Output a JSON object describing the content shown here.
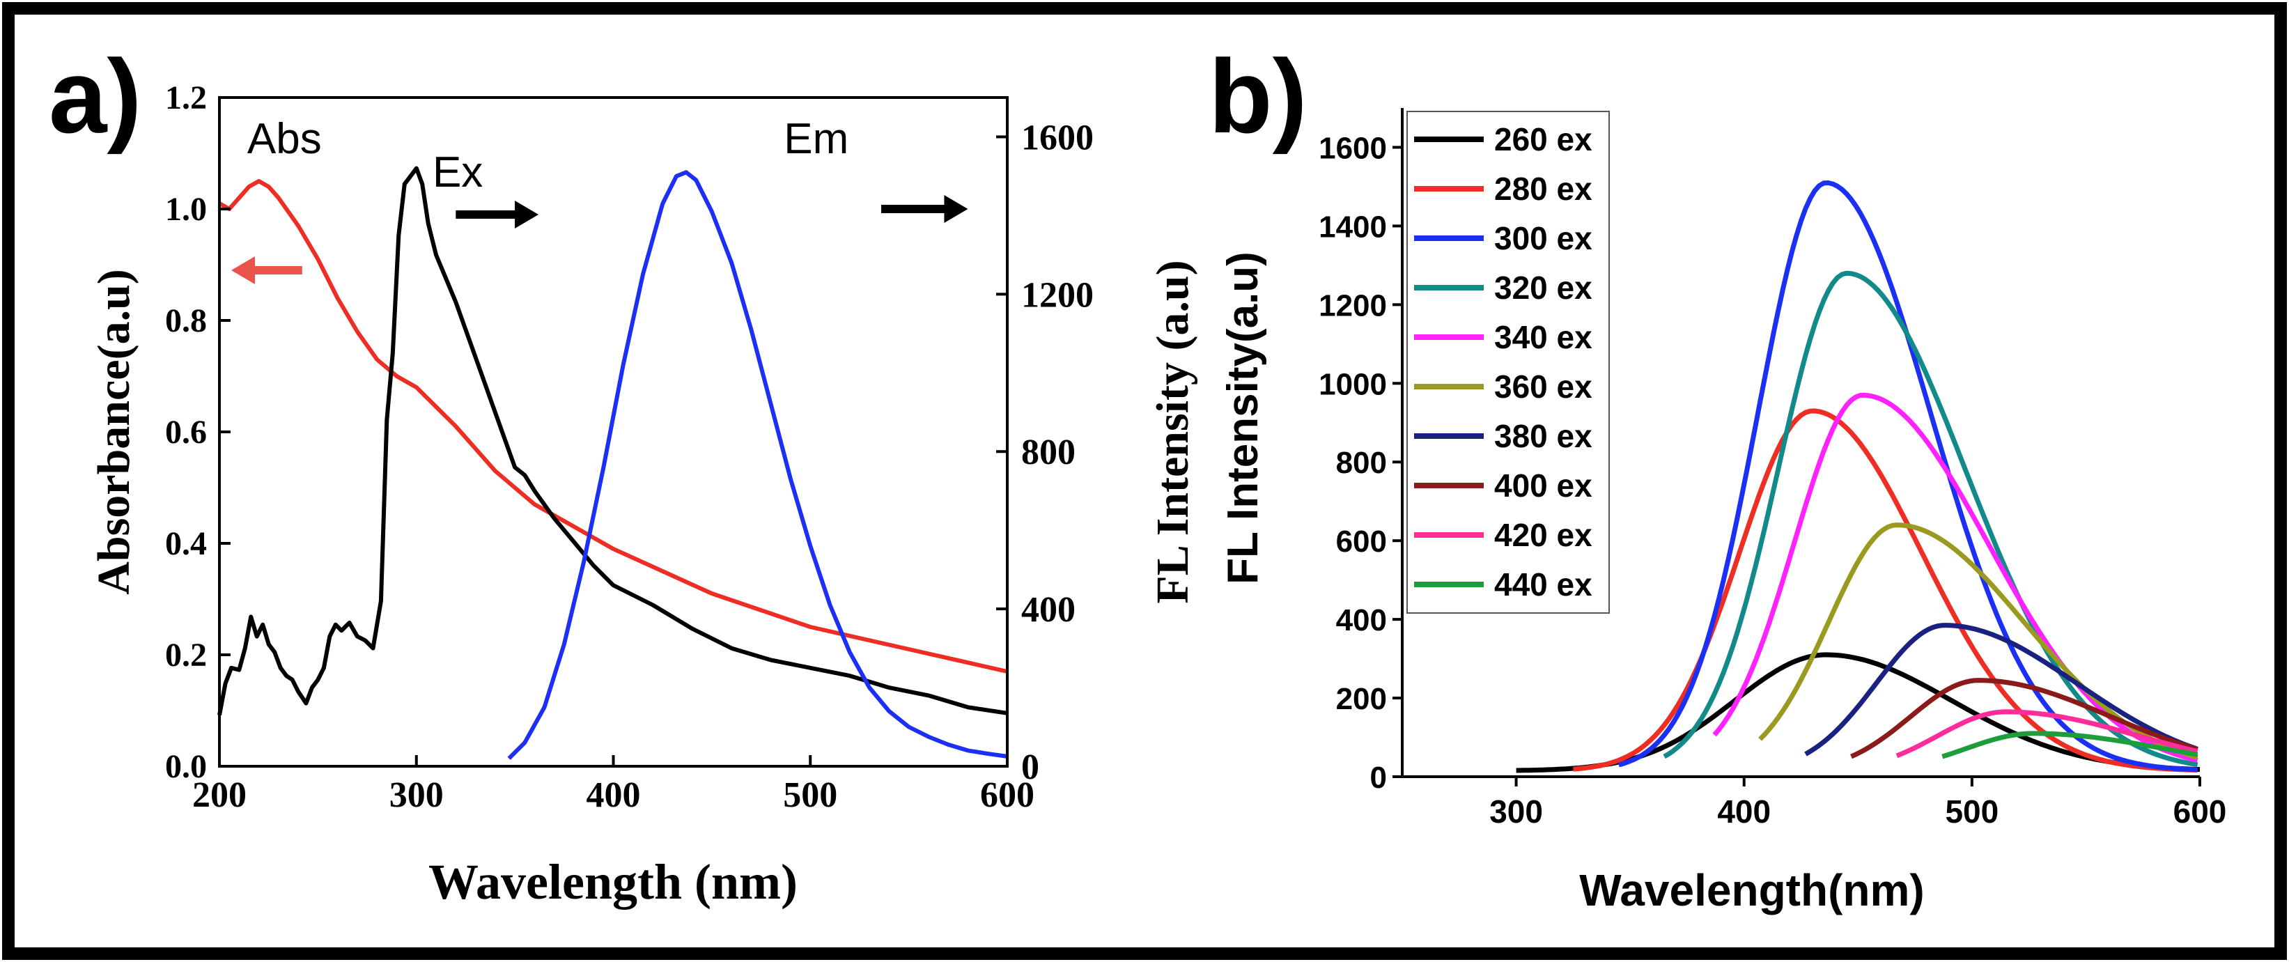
{
  "figure": {
    "colors": {
      "frame": "#000000",
      "background": "#ffffff"
    }
  },
  "chart_data": [
    {
      "type": "line",
      "panel_label": "a)",
      "title": "",
      "xlabel": "Wavelength (nm)",
      "ylabel": "Absorbance(a.u)",
      "ylabel_right": "FL Intensity (a.u)",
      "xlim": [
        200,
        600
      ],
      "ylim": [
        0,
        1.2
      ],
      "ylim_right": [
        0,
        1700
      ],
      "xticks": [
        200,
        300,
        400,
        500,
        600
      ],
      "xtick_labels": [
        "200",
        "300",
        "400",
        "500",
        "600"
      ],
      "yticks": [
        0,
        0.2,
        0.4,
        0.6,
        0.8,
        1.0,
        1.2
      ],
      "ytick_labels": [
        "0.0",
        "0.2",
        "0.4",
        "0.6",
        "0.8",
        "1.0",
        "1.2"
      ],
      "yticks_right": [
        0,
        400,
        800,
        1200,
        1600
      ],
      "ytick_labels_right": [
        "0",
        "400",
        "800",
        "1200",
        "1600"
      ],
      "grid": false,
      "annotations": [
        {
          "text": "Abs",
          "x": 233,
          "y": 1.1,
          "axis": "left"
        },
        {
          "text": "Ex",
          "x": 321,
          "y": 1.04,
          "axis": "left"
        },
        {
          "text": "Em",
          "x": 503,
          "y": 1.1,
          "axis": "left"
        }
      ],
      "arrows": [
        {
          "color": "#e8534a",
          "from": [
            242,
            0.89
          ],
          "to": [
            206,
            0.89
          ],
          "axis": "left"
        },
        {
          "color": "#000000",
          "from": [
            320,
            0.99
          ],
          "to": [
            362,
            0.99
          ],
          "axis": "left"
        },
        {
          "color": "#000000",
          "from": [
            536,
            1.0
          ],
          "to": [
            580,
            1.0
          ],
          "axis": "left"
        }
      ],
      "series": [
        {
          "name": "Abs",
          "axis": "left",
          "color": "#ee2d24",
          "x": [
            200,
            205,
            210,
            215,
            220,
            225,
            230,
            240,
            250,
            260,
            270,
            280,
            290,
            300,
            320,
            340,
            360,
            380,
            400,
            450,
            500,
            550,
            600
          ],
          "y": [
            1.01,
            1.0,
            1.02,
            1.04,
            1.05,
            1.04,
            1.02,
            0.97,
            0.91,
            0.84,
            0.78,
            0.73,
            0.7,
            0.68,
            0.61,
            0.53,
            0.47,
            0.43,
            0.39,
            0.31,
            0.25,
            0.21,
            0.17
          ]
        },
        {
          "name": "Ex",
          "axis": "right",
          "color": "#000000",
          "x": [
            200,
            203,
            206,
            210,
            213,
            216,
            219,
            222,
            225,
            228,
            231,
            234,
            237,
            240,
            244,
            247,
            250,
            253,
            256,
            259,
            262,
            266,
            270,
            274,
            278,
            282,
            285,
            288,
            291,
            294,
            297,
            300,
            303,
            306,
            310,
            320,
            330,
            340,
            350,
            355,
            360,
            370,
            380,
            390,
            400,
            420,
            440,
            460,
            480,
            500,
            520,
            540,
            560,
            580,
            600
          ],
          "y": [
            130,
            210,
            250,
            245,
            300,
            380,
            330,
            360,
            310,
            290,
            250,
            230,
            220,
            190,
            160,
            200,
            220,
            250,
            330,
            360,
            345,
            365,
            330,
            320,
            300,
            420,
            880,
            1050,
            1350,
            1480,
            1500,
            1520,
            1480,
            1380,
            1300,
            1180,
            1040,
            900,
            760,
            740,
            700,
            630,
            570,
            510,
            460,
            410,
            350,
            300,
            270,
            250,
            230,
            200,
            180,
            150,
            135
          ]
        },
        {
          "name": "Em",
          "axis": "right",
          "color": "#1c2ff5",
          "x": [
            347,
            355,
            365,
            375,
            385,
            395,
            405,
            415,
            425,
            432,
            437,
            442,
            450,
            460,
            470,
            480,
            490,
            500,
            510,
            520,
            530,
            540,
            550,
            560,
            570,
            580,
            590,
            600
          ],
          "y": [
            20,
            60,
            150,
            310,
            520,
            760,
            1020,
            1250,
            1430,
            1500,
            1510,
            1490,
            1410,
            1280,
            1110,
            920,
            730,
            560,
            410,
            290,
            200,
            140,
            100,
            75,
            55,
            40,
            32,
            25
          ]
        }
      ]
    },
    {
      "type": "line",
      "panel_label": "b)",
      "title": "",
      "xlabel": "Wavelength(nm)",
      "ylabel": "FL Intensity(a.u)",
      "xlim": [
        250,
        600
      ],
      "ylim": [
        0,
        1700
      ],
      "xticks": [
        300,
        400,
        500,
        600
      ],
      "xtick_labels": [
        "300",
        "400",
        "500",
        "600"
      ],
      "yticks": [
        0,
        200,
        400,
        600,
        800,
        1000,
        1200,
        1400,
        1600
      ],
      "ytick_labels": [
        "0",
        "200",
        "400",
        "600",
        "800",
        "1000",
        "1200",
        "1400",
        "1600"
      ],
      "grid": false,
      "legend_location": "top-left",
      "series": [
        {
          "name": "260 ex",
          "color": "#000000",
          "start": 300,
          "peak_x": 436,
          "peak_y": 310,
          "sigma_left": 40,
          "sigma_right": 55,
          "base": 15
        },
        {
          "name": "280 ex",
          "color": "#ee2d24",
          "start": 325,
          "peak_x": 430,
          "peak_y": 930,
          "sigma_left": 32,
          "sigma_right": 48,
          "base": 15
        },
        {
          "name": "300 ex",
          "color": "#1c2ff5",
          "start": 345,
          "peak_x": 436,
          "peak_y": 1510,
          "sigma_left": 30,
          "sigma_right": 46,
          "base": 15
        },
        {
          "name": "320 ex",
          "color": "#138a8a",
          "start": 365,
          "peak_x": 445,
          "peak_y": 1280,
          "sigma_left": 30,
          "sigma_right": 52,
          "base": 15
        },
        {
          "name": "340 ex",
          "color": "#ff22ff",
          "start": 387,
          "peak_x": 452,
          "peak_y": 970,
          "sigma_left": 30,
          "sigma_right": 55,
          "base": 15
        },
        {
          "name": "360 ex",
          "color": "#9a9a20",
          "start": 407,
          "peak_x": 467,
          "peak_y": 640,
          "sigma_left": 30,
          "sigma_right": 56,
          "base": 10
        },
        {
          "name": "380 ex",
          "color": "#1a2180",
          "start": 427,
          "peak_x": 488,
          "peak_y": 385,
          "sigma_left": 30,
          "sigma_right": 58,
          "base": 10
        },
        {
          "name": "400 ex",
          "color": "#8b1a1a",
          "start": 447,
          "peak_x": 503,
          "peak_y": 245,
          "sigma_left": 30,
          "sigma_right": 58,
          "base": 10
        },
        {
          "name": "420 ex",
          "color": "#ff2c9c",
          "start": 467,
          "peak_x": 515,
          "peak_y": 165,
          "sigma_left": 30,
          "sigma_right": 58,
          "base": 10
        },
        {
          "name": "440 ex",
          "color": "#1e9d3a",
          "start": 487,
          "peak_x": 527,
          "peak_y": 110,
          "sigma_left": 30,
          "sigma_right": 58,
          "base": 10
        }
      ]
    }
  ]
}
